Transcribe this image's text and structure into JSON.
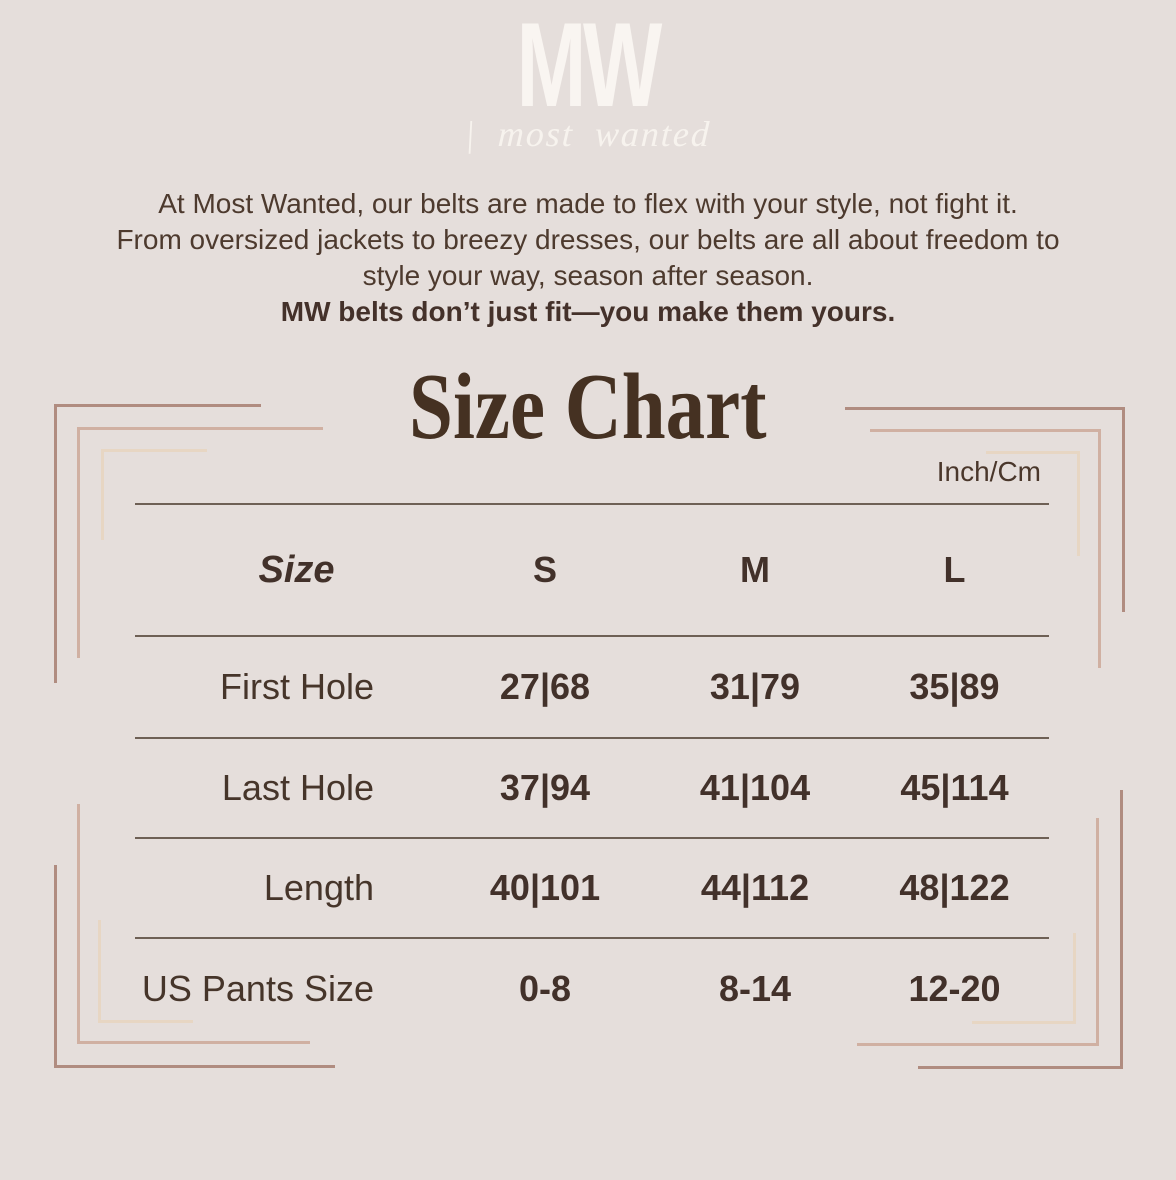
{
  "logo": {
    "monogram": "MW",
    "tagline": "| most wanted"
  },
  "intro": {
    "line1": "At Most Wanted, our belts are made to flex with your style, not fight it.",
    "line2": "From oversized jackets to breezy dresses, our belts are all about freedom to",
    "line3": "style your way, season after season.",
    "emphasis": "MW belts don’t just fit—you make them yours."
  },
  "chart_data": {
    "type": "table",
    "title": "Size Chart",
    "units_label": "Inch/Cm",
    "columns": [
      "Size",
      "S",
      "M",
      "L"
    ],
    "rows": [
      [
        "First Hole",
        "27|68",
        "31|79",
        "35|89"
      ],
      [
        "Last Hole",
        "37|94",
        "41|104",
        "45|114"
      ],
      [
        "Length",
        "40|101",
        "44|112",
        "48|122"
      ],
      [
        "US Pants Size",
        "0-8",
        "8-14",
        "12-20"
      ]
    ]
  },
  "colors": {
    "background": "#e5dedb",
    "text_dark": "#4a372b",
    "title_ink": "#453122",
    "logo_ink": "#f9f5f1",
    "table_rule": "#6e6055",
    "frame_dark": "#b08c80",
    "frame_mid": "#d0b0a2",
    "frame_light": "#e7d6c3"
  }
}
